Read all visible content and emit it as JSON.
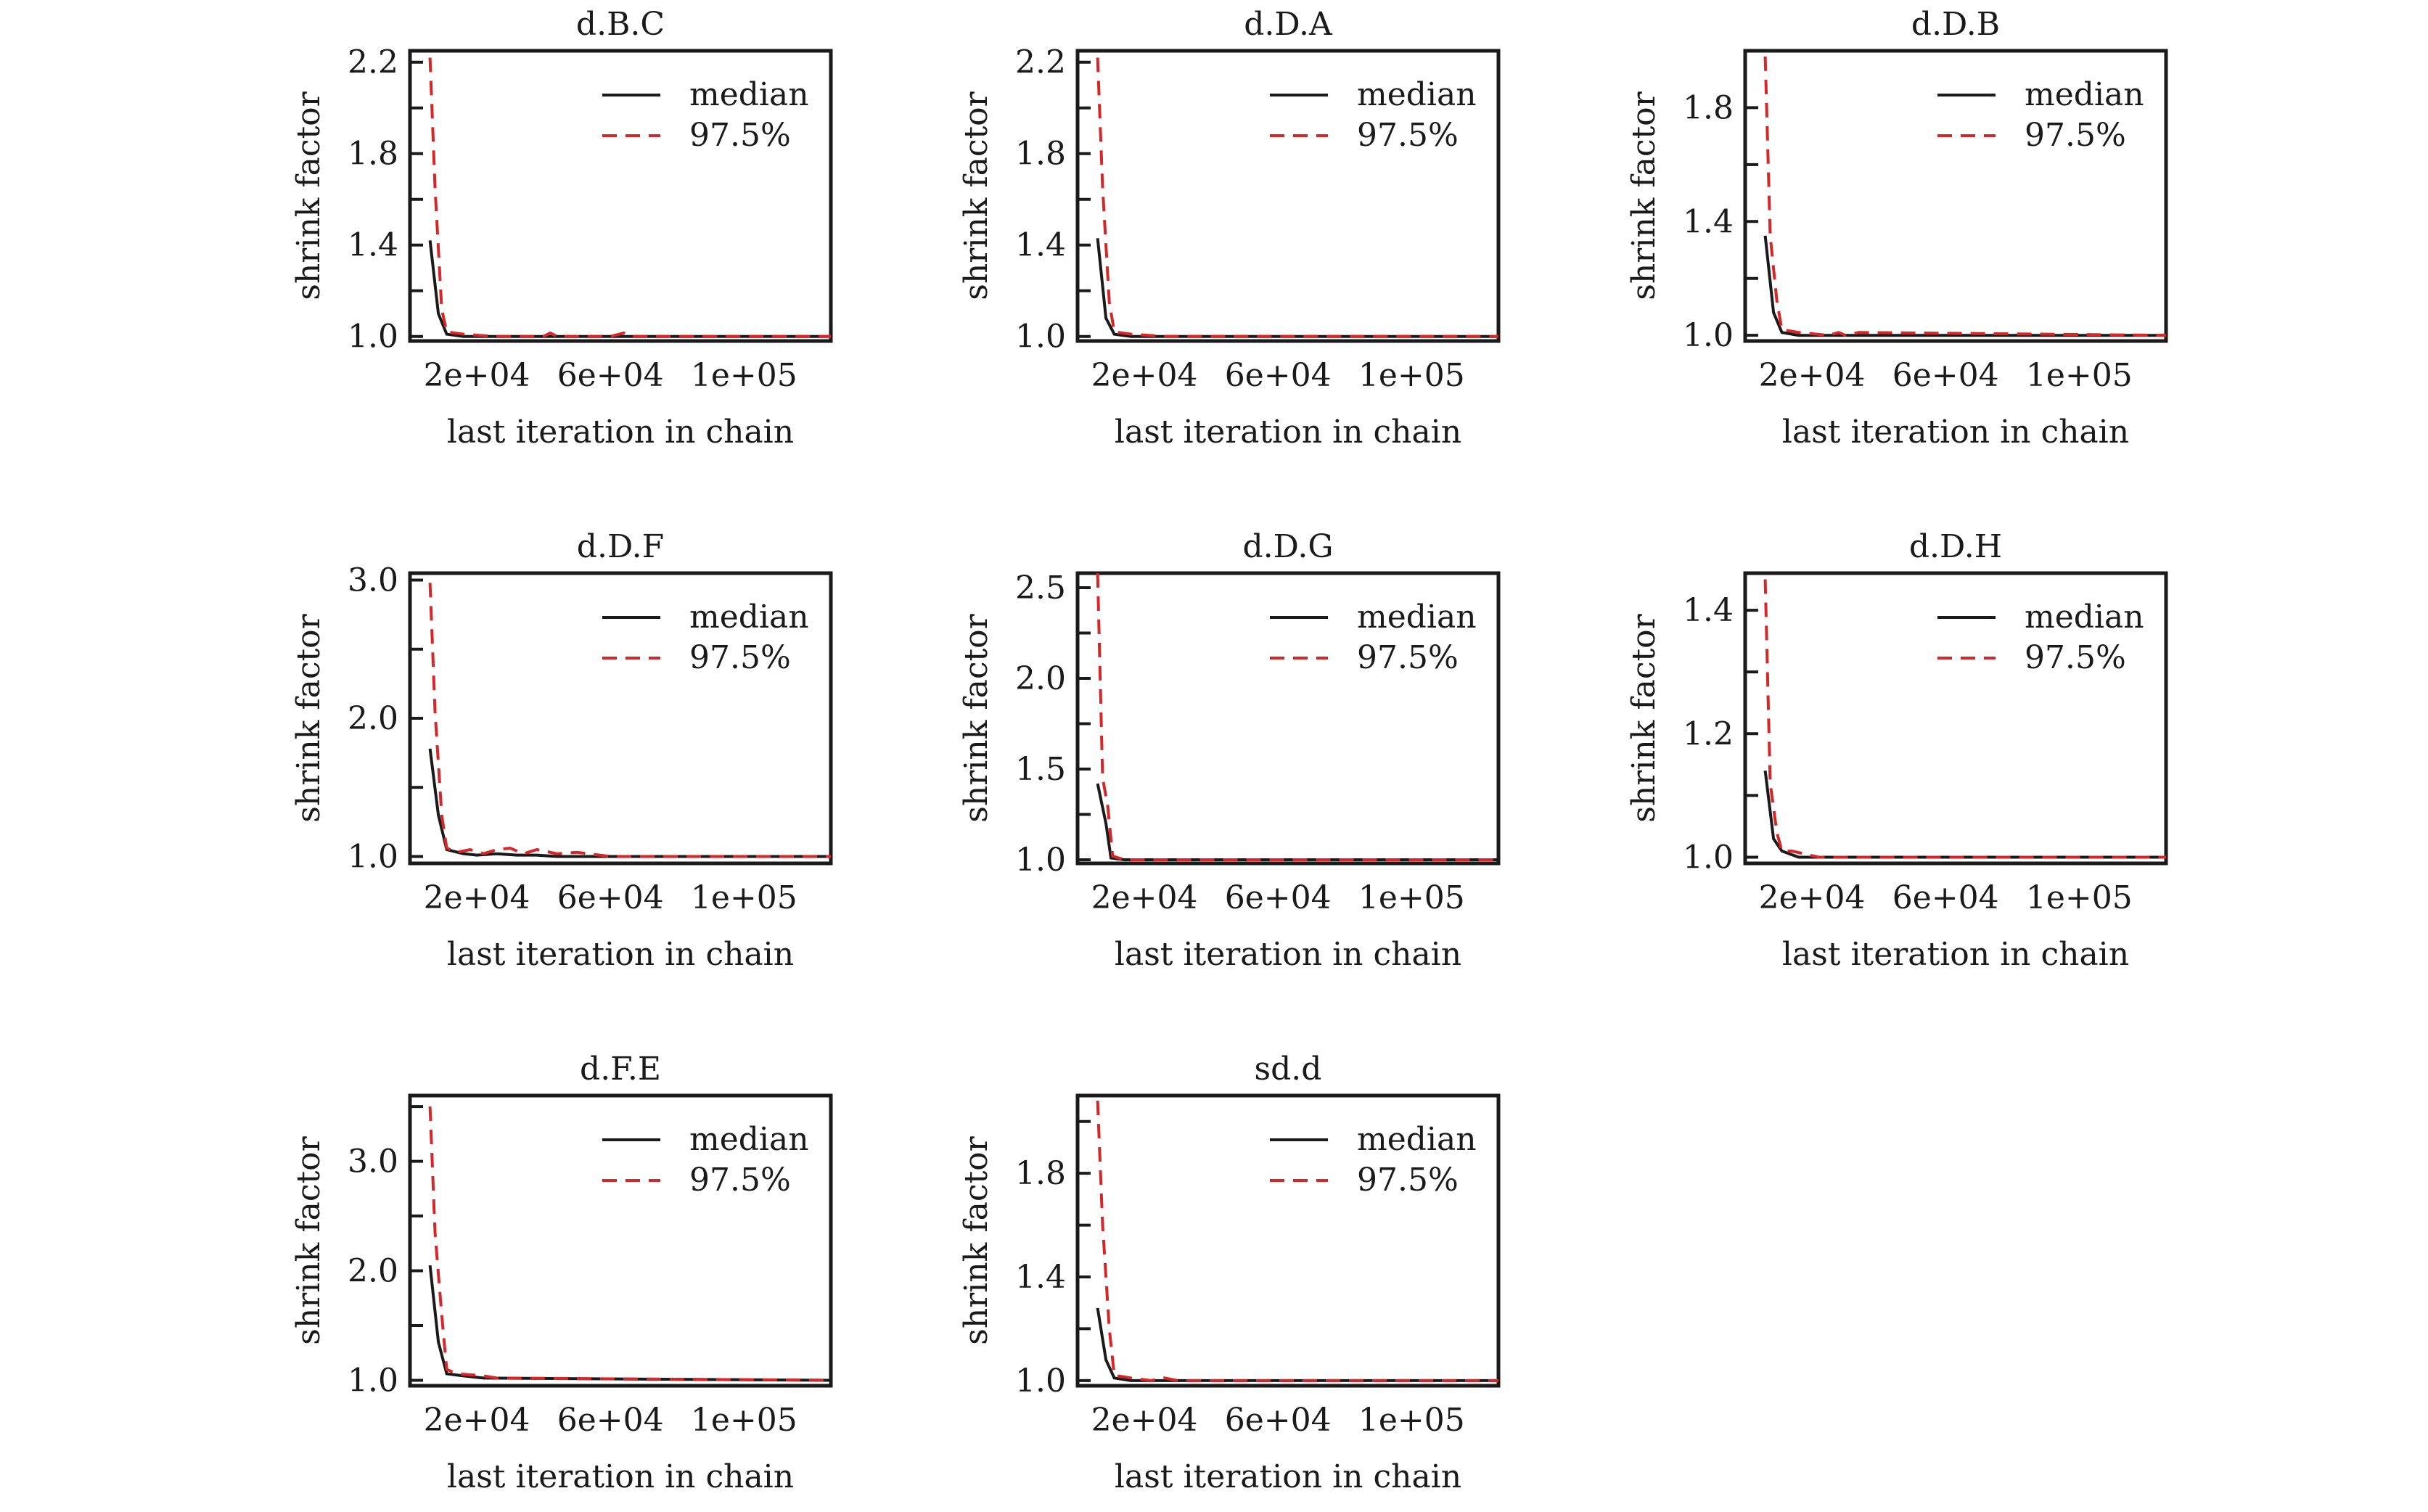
{
  "figure": {
    "colors": {
      "median": "#1a1a1a",
      "q975": "#d62728",
      "axis": "#1a1a1a"
    }
  },
  "chart_data": [
    {
      "type": "line",
      "title": "d.B.C",
      "xlabel": "last iteration in chain",
      "ylabel": "shrink factor",
      "xlim": [
        0,
        126000
      ],
      "ylim": [
        0.98,
        2.25
      ],
      "xticks": [
        20000,
        60000,
        100000
      ],
      "xtick_labels": [
        "2e+04",
        "6e+04",
        "1e+05"
      ],
      "yticks": [
        1.0,
        1.4,
        1.8,
        2.2
      ],
      "ytick_labels": [
        "1.0",
        "1.4",
        "1.8",
        "2.2"
      ],
      "legend": {
        "position": "top-right",
        "entries": [
          "median",
          "97.5%"
        ]
      },
      "series": [
        {
          "name": "median",
          "style": "solid",
          "x": [
            6000,
            8500,
            11000,
            16000,
            25000,
            40000,
            60000,
            80000,
            100000,
            126000
          ],
          "values": [
            1.42,
            1.1,
            1.01,
            1.0,
            1.0,
            1.0,
            1.0,
            1.0,
            1.0,
            1.0
          ]
        },
        {
          "name": "97.5%",
          "style": "dashed",
          "x": [
            6000,
            7500,
            9500,
            11000,
            16000,
            25000,
            40000,
            42000,
            44000,
            60000,
            64000,
            66000,
            68000,
            126000
          ],
          "values": [
            2.22,
            1.65,
            1.12,
            1.02,
            1.01,
            1.0,
            1.0,
            1.015,
            1.0,
            1.0,
            1.015,
            1.0,
            1.0,
            1.0
          ]
        }
      ]
    },
    {
      "type": "line",
      "title": "d.D.A",
      "xlabel": "last iteration in chain",
      "ylabel": "shrink factor",
      "xlim": [
        0,
        126000
      ],
      "ylim": [
        0.98,
        2.25
      ],
      "xticks": [
        20000,
        60000,
        100000
      ],
      "xtick_labels": [
        "2e+04",
        "6e+04",
        "1e+05"
      ],
      "yticks": [
        1.0,
        1.4,
        1.8,
        2.2
      ],
      "ytick_labels": [
        "1.0",
        "1.4",
        "1.8",
        "2.2"
      ],
      "legend": {
        "position": "top-right",
        "entries": [
          "median",
          "97.5%"
        ]
      },
      "series": [
        {
          "name": "median",
          "style": "solid",
          "x": [
            6000,
            8500,
            11000,
            16000,
            126000
          ],
          "values": [
            1.43,
            1.08,
            1.01,
            1.0,
            1.0
          ]
        },
        {
          "name": "97.5%",
          "style": "dashed",
          "x": [
            6000,
            7500,
            9500,
            11000,
            16000,
            26000,
            126000
          ],
          "values": [
            2.22,
            1.65,
            1.15,
            1.02,
            1.01,
            1.0,
            1.0
          ]
        }
      ]
    },
    {
      "type": "line",
      "title": "d.D.B",
      "xlabel": "last iteration in chain",
      "ylabel": "shrink factor",
      "xlim": [
        0,
        126000
      ],
      "ylim": [
        0.98,
        2.0
      ],
      "xticks": [
        20000,
        60000,
        100000
      ],
      "xtick_labels": [
        "2e+04",
        "6e+04",
        "1e+05"
      ],
      "yticks": [
        1.0,
        1.4,
        1.8
      ],
      "ytick_labels": [
        "1.0",
        "1.4",
        "1.8"
      ],
      "legend": {
        "position": "top-right",
        "entries": [
          "median",
          "97.5%"
        ]
      },
      "series": [
        {
          "name": "median",
          "style": "solid",
          "x": [
            6000,
            8500,
            11000,
            16000,
            126000
          ],
          "values": [
            1.35,
            1.08,
            1.01,
            1.0,
            1.0
          ]
        },
        {
          "name": "97.5%",
          "style": "dashed",
          "x": [
            6000,
            7500,
            9500,
            11000,
            16000,
            25000,
            28000,
            30000,
            34000,
            126000
          ],
          "values": [
            1.98,
            1.35,
            1.12,
            1.02,
            1.01,
            1.0,
            1.01,
            1.0,
            1.01,
            1.0
          ]
        }
      ]
    },
    {
      "type": "line",
      "title": "d.D.F",
      "xlabel": "last iteration in chain",
      "ylabel": "shrink factor",
      "xlim": [
        0,
        126000
      ],
      "ylim": [
        0.95,
        3.05
      ],
      "xticks": [
        20000,
        60000,
        100000
      ],
      "xtick_labels": [
        "2e+04",
        "6e+04",
        "1e+05"
      ],
      "yticks": [
        1.0,
        2.0,
        3.0
      ],
      "ytick_labels": [
        "1.0",
        "2.0",
        "3.0"
      ],
      "legend": {
        "position": "top-right",
        "entries": [
          "median",
          "97.5%"
        ]
      },
      "series": [
        {
          "name": "median",
          "style": "solid",
          "x": [
            6000,
            8500,
            11000,
            16000,
            20000,
            26000,
            32000,
            38000,
            44000,
            126000
          ],
          "values": [
            1.78,
            1.3,
            1.05,
            1.02,
            1.01,
            1.02,
            1.01,
            1.01,
            1.0,
            1.0
          ]
        },
        {
          "name": "97.5%",
          "style": "dashed",
          "x": [
            6000,
            7500,
            9500,
            11000,
            14000,
            18000,
            22000,
            26000,
            30000,
            34000,
            38000,
            44000,
            50000,
            60000,
            126000
          ],
          "values": [
            2.98,
            2.05,
            1.3,
            1.06,
            1.03,
            1.05,
            1.02,
            1.05,
            1.06,
            1.02,
            1.05,
            1.02,
            1.03,
            1.0,
            1.0
          ]
        }
      ]
    },
    {
      "type": "line",
      "title": "d.D.G",
      "xlabel": "last iteration in chain",
      "ylabel": "shrink factor",
      "xlim": [
        0,
        126000
      ],
      "ylim": [
        0.98,
        2.58
      ],
      "xticks": [
        20000,
        60000,
        100000
      ],
      "xtick_labels": [
        "2e+04",
        "6e+04",
        "1e+05"
      ],
      "yticks": [
        1.0,
        1.5,
        2.0,
        2.5
      ],
      "ytick_labels": [
        "1.0",
        "1.5",
        "2.0",
        "2.5"
      ],
      "legend": {
        "position": "top-right",
        "entries": [
          "median",
          "97.5%"
        ]
      },
      "series": [
        {
          "name": "median",
          "style": "solid",
          "x": [
            6000,
            8500,
            10000,
            14000,
            126000
          ],
          "values": [
            1.42,
            1.2,
            1.01,
            1.0,
            1.0
          ]
        },
        {
          "name": "97.5%",
          "style": "dashed",
          "x": [
            6000,
            7500,
            9000,
            10500,
            14000,
            126000
          ],
          "values": [
            2.58,
            1.45,
            1.3,
            1.02,
            1.0,
            1.0
          ]
        }
      ]
    },
    {
      "type": "line",
      "title": "d.D.H",
      "xlabel": "last iteration in chain",
      "ylabel": "shrink factor",
      "xlim": [
        0,
        126000
      ],
      "ylim": [
        0.99,
        1.46
      ],
      "xticks": [
        20000,
        60000,
        100000
      ],
      "xtick_labels": [
        "2e+04",
        "6e+04",
        "1e+05"
      ],
      "yticks": [
        1.0,
        1.2,
        1.4
      ],
      "ytick_labels": [
        "1.0",
        "1.2",
        "1.4"
      ],
      "legend": {
        "position": "top-right",
        "entries": [
          "median",
          "97.5%"
        ]
      },
      "series": [
        {
          "name": "median",
          "style": "solid",
          "x": [
            6000,
            8500,
            11000,
            16000,
            126000
          ],
          "values": [
            1.14,
            1.03,
            1.01,
            1.0,
            1.0
          ]
        },
        {
          "name": "97.5%",
          "style": "dashed",
          "x": [
            6000,
            7500,
            9500,
            11000,
            14000,
            18000,
            22000,
            126000
          ],
          "values": [
            1.45,
            1.12,
            1.04,
            1.01,
            1.01,
            1.005,
            1.0,
            1.0
          ]
        }
      ]
    },
    {
      "type": "line",
      "title": "d.F.E",
      "xlabel": "last iteration in chain",
      "ylabel": "shrink factor",
      "xlim": [
        0,
        126000
      ],
      "ylim": [
        0.95,
        3.6
      ],
      "xticks": [
        20000,
        60000,
        100000
      ],
      "xtick_labels": [
        "2e+04",
        "6e+04",
        "1e+05"
      ],
      "yticks": [
        1.0,
        2.0,
        3.0
      ],
      "ytick_labels": [
        "1.0",
        "2.0",
        "3.0"
      ],
      "legend": {
        "position": "top-right",
        "entries": [
          "median",
          "97.5%"
        ]
      },
      "series": [
        {
          "name": "median",
          "style": "solid",
          "x": [
            6000,
            8500,
            11000,
            16000,
            22000,
            126000
          ],
          "values": [
            2.05,
            1.35,
            1.06,
            1.04,
            1.02,
            1.0
          ]
        },
        {
          "name": "97.5%",
          "style": "dashed",
          "x": [
            6000,
            7500,
            9500,
            11000,
            14000,
            18000,
            22000,
            26000,
            126000
          ],
          "values": [
            3.5,
            2.35,
            1.6,
            1.1,
            1.06,
            1.05,
            1.04,
            1.02,
            1.0
          ]
        }
      ]
    },
    {
      "type": "line",
      "title": "sd.d",
      "xlabel": "last iteration in chain",
      "ylabel": "shrink factor",
      "xlim": [
        0,
        126000
      ],
      "ylim": [
        0.98,
        2.1
      ],
      "xticks": [
        20000,
        60000,
        100000
      ],
      "xtick_labels": [
        "2e+04",
        "6e+04",
        "1e+05"
      ],
      "yticks": [
        1.0,
        1.4,
        1.8
      ],
      "ytick_labels": [
        "1.0",
        "1.4",
        "1.8"
      ],
      "legend": {
        "position": "top-right",
        "entries": [
          "median",
          "97.5%"
        ]
      },
      "series": [
        {
          "name": "median",
          "style": "solid",
          "x": [
            6000,
            8500,
            11000,
            16000,
            126000
          ],
          "values": [
            1.28,
            1.08,
            1.01,
            1.0,
            1.0
          ]
        },
        {
          "name": "97.5%",
          "style": "dashed",
          "x": [
            6000,
            7500,
            9500,
            11000,
            16000,
            22000,
            26000,
            30000,
            126000
          ],
          "values": [
            2.08,
            1.6,
            1.2,
            1.02,
            1.01,
            1.0,
            1.01,
            1.0,
            1.0
          ]
        }
      ]
    }
  ]
}
